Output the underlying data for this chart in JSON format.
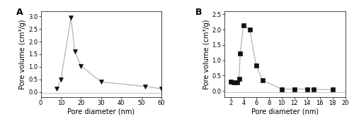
{
  "A": {
    "label": "A",
    "x": [
      8,
      10,
      15,
      17,
      20,
      30,
      52,
      60
    ],
    "y": [
      0.12,
      0.48,
      2.95,
      1.6,
      1.03,
      0.4,
      0.22,
      0.13
    ],
    "xlabel": "Pore diameter (nm)",
    "ylabel": "Pore volume (cm³/g)",
    "xlim": [
      0,
      60
    ],
    "ylim": [
      -0.2,
      3.2
    ],
    "xticks": [
      0,
      10,
      20,
      30,
      40,
      50,
      60
    ],
    "yticks": [
      0.0,
      0.5,
      1.0,
      1.5,
      2.0,
      2.5,
      3.0
    ]
  },
  "B": {
    "label": "B",
    "x": [
      2.0,
      2.5,
      3.0,
      3.3,
      3.5,
      4.0,
      5.0,
      6.0,
      7.0,
      10,
      12,
      14,
      15,
      18
    ],
    "y": [
      0.3,
      0.27,
      0.28,
      0.4,
      1.22,
      2.15,
      2.0,
      0.83,
      0.35,
      0.06,
      0.06,
      0.06,
      0.05,
      0.04
    ],
    "xlabel": "Pore diameter (nm)",
    "ylabel": "Pore volume (cm³/g)",
    "xlim": [
      1,
      20
    ],
    "ylim": [
      -0.2,
      2.6
    ],
    "xticks": [
      2,
      4,
      6,
      8,
      10,
      12,
      14,
      16,
      18,
      20
    ],
    "yticks": [
      0.0,
      0.5,
      1.0,
      1.5,
      2.0,
      2.5
    ]
  },
  "marker_A": "v",
  "marker_B": "s",
  "line_color": "#aaaaaa",
  "marker_color": "#111111",
  "marker_size": 4,
  "linewidth": 0.8,
  "bg_color": "#ffffff"
}
